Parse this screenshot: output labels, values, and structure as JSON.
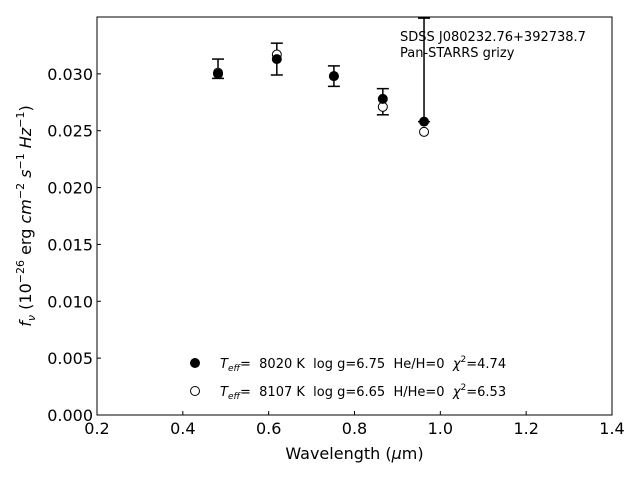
{
  "chart_data": {
    "type": "scatter",
    "annotation": [
      "SDSS J080232.76+392738.7",
      "Pan-STARRS grizy"
    ],
    "xlabel": {
      "base": "Wavelength (",
      "mu": "μ",
      "rest": "m)"
    },
    "ylabel": {
      "f": "f",
      "sub": "ν",
      "open": " (10",
      "exp1": "−26",
      "erg": " erg ",
      "cm": "cm",
      "exp2": "−2",
      "s": " s",
      "exp3": "−1",
      "hz": " Hz",
      "exp4": "−1",
      "close": ")"
    },
    "xlim": [
      0.2,
      1.4
    ],
    "ylim": [
      0.0,
      0.035
    ],
    "xticks": [
      0.2,
      0.4,
      0.6,
      0.8,
      1.0,
      1.2,
      1.4
    ],
    "xtick_labels": [
      "0.2",
      "0.4",
      "0.6",
      "0.8",
      "1.0",
      "1.2",
      "1.4"
    ],
    "yticks": [
      0.0,
      0.005,
      0.01,
      0.015,
      0.02,
      0.025,
      0.03
    ],
    "ytick_labels": [
      "0.000",
      "0.005",
      "0.010",
      "0.015",
      "0.020",
      "0.025",
      "0.030"
    ],
    "grid": false,
    "legend_placement": "lower-center",
    "observed": {
      "x": [
        0.482,
        0.619,
        0.752,
        0.866,
        0.962
      ],
      "y": [
        0.0301,
        0.0313,
        0.0298,
        0.0275,
        0.0258
      ],
      "err_low": [
        0.0296,
        0.0299,
        0.0289,
        0.0264,
        0.0258
      ],
      "err_high": [
        0.0313,
        0.0327,
        0.0307,
        0.0287,
        0.0349
      ]
    },
    "series": [
      {
        "marker": "filled",
        "legend": {
          "t": "T",
          "sub": "eff",
          "text": "=  8020 K  log g=6.75  He/H=0  ",
          "chi": "χ",
          "sup": "2",
          "val": "=4.74"
        },
        "x": [
          0.482,
          0.619,
          0.752,
          0.866,
          0.962
        ],
        "y": [
          0.03,
          0.0313,
          0.0298,
          0.0278,
          0.0258
        ]
      },
      {
        "marker": "open",
        "legend": {
          "t": "T",
          "sub": "eff",
          "text": "=  8107 K  log g=6.65  H/He=0  ",
          "chi": "χ",
          "sup": "2",
          "val": "=6.53"
        },
        "x": [
          0.482,
          0.619,
          0.752,
          0.866,
          0.962
        ],
        "y": [
          0.0301,
          0.0317,
          0.0298,
          0.0271,
          0.0249
        ]
      }
    ]
  }
}
